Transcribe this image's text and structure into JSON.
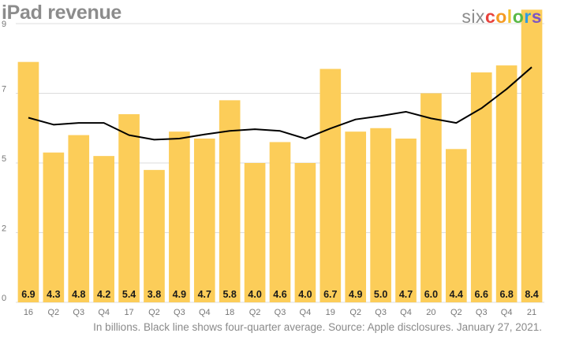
{
  "title": "iPad revenue",
  "brand": {
    "six": "six",
    "colors_letters": [
      "c",
      "o",
      "l",
      "o",
      "r",
      "s"
    ],
    "colors_palette": [
      "#e8423c",
      "#f59b22",
      "#f2c12e",
      "#5ab946",
      "#2f9be3",
      "#7d56c2"
    ]
  },
  "footnote": "In billions. Black line shows four-quarter average. Source: Apple disclosures. January 27, 2021.",
  "chart_data": {
    "type": "bar",
    "categories": [
      "16",
      "Q2",
      "Q3",
      "Q4",
      "17",
      "Q2",
      "Q3",
      "Q4",
      "18",
      "Q2",
      "Q3",
      "Q4",
      "19",
      "Q2",
      "Q3",
      "Q4",
      "20",
      "Q2",
      "Q3",
      "Q4",
      "21"
    ],
    "series": [
      {
        "values": [
          6.9,
          4.3,
          4.8,
          4.2,
          5.4,
          3.8,
          4.9,
          4.7,
          5.8,
          4.0,
          4.6,
          4.0,
          6.7,
          4.9,
          5.0,
          4.7,
          6.0,
          4.4,
          6.6,
          6.8,
          8.4
        ],
        "labels": [
          "6.9",
          "4.3",
          "4.8",
          "4.2",
          "5.4",
          "3.8",
          "4.9",
          "4.7",
          "5.8",
          "4.0",
          "4.6",
          "4.0",
          "6.7",
          "4.9",
          "5.0",
          "4.7",
          "6.0",
          "4.4",
          "6.6",
          "6.8",
          "8.4"
        ],
        "color": "#fccd59"
      },
      {
        "type": "line",
        "values": [
          5.3,
          5.1,
          5.15,
          5.15,
          4.8,
          4.67,
          4.7,
          4.82,
          4.92,
          4.97,
          4.92,
          4.7,
          4.99,
          5.25,
          5.35,
          5.47,
          5.28,
          5.15,
          5.57,
          6.12,
          6.75
        ],
        "color": "#000000"
      }
    ],
    "yticks": [
      0,
      2,
      5,
      7,
      9
    ],
    "ylim": [
      0,
      8
    ],
    "grid": true,
    "xlabel": "",
    "ylabel": ""
  }
}
